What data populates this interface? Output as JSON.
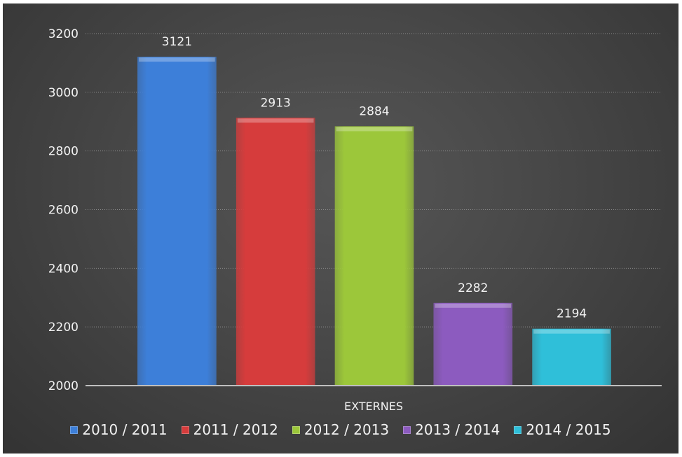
{
  "chart_data": {
    "type": "bar",
    "categories": [
      "EXTERNES"
    ],
    "series": [
      {
        "name": "2010 / 2011",
        "values": [
          3121
        ],
        "color": "#3d7fd9"
      },
      {
        "name": "2011 / 2012",
        "values": [
          2913
        ],
        "color": "#d63c3c"
      },
      {
        "name": "2012 / 2013",
        "values": [
          2884
        ],
        "color": "#9cc73a"
      },
      {
        "name": "2013 / 2014",
        "values": [
          2282
        ],
        "color": "#8c5bbf"
      },
      {
        "name": "2014 / 2015",
        "values": [
          2194
        ],
        "color": "#2fbfd9"
      }
    ],
    "ylim": [
      2000,
      3200
    ],
    "yticks": [
      2000,
      2200,
      2400,
      2600,
      2800,
      3000,
      3200
    ],
    "title": "",
    "xlabel": "",
    "ylabel": "",
    "grid": true,
    "legend_position": "bottom",
    "data_labels": true
  }
}
